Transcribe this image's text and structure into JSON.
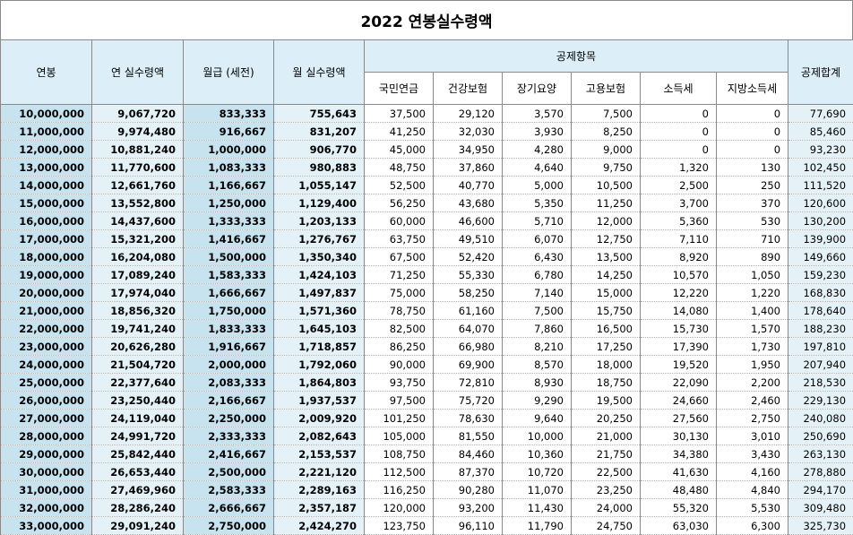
{
  "title": "2022 연봉실수령액",
  "headers": {
    "salary": "연봉",
    "annual_net": "연 실수령액",
    "monthly_gross": "월급 (세전)",
    "monthly_net": "월 실수령액",
    "deductions_group": "공제항목",
    "national_pension": "국민연금",
    "health_insurance": "건강보험",
    "long_term_care": "장기요양",
    "employment_insurance": "고용보험",
    "income_tax": "소득세",
    "local_income_tax": "지방소득세",
    "total_deductions": "공제합계"
  },
  "rows": [
    [
      "10,000,000",
      "9,067,720",
      "833,333",
      "755,643",
      "37,500",
      "29,120",
      "3,570",
      "7,500",
      "0",
      "0",
      "77,690"
    ],
    [
      "11,000,000",
      "9,974,480",
      "916,667",
      "831,207",
      "41,250",
      "32,030",
      "3,930",
      "8,250",
      "0",
      "0",
      "85,460"
    ],
    [
      "12,000,000",
      "10,881,240",
      "1,000,000",
      "906,770",
      "45,000",
      "34,950",
      "4,280",
      "9,000",
      "0",
      "0",
      "93,230"
    ],
    [
      "13,000,000",
      "11,770,600",
      "1,083,333",
      "980,883",
      "48,750",
      "37,860",
      "4,640",
      "9,750",
      "1,320",
      "130",
      "102,450"
    ],
    [
      "14,000,000",
      "12,661,760",
      "1,166,667",
      "1,055,147",
      "52,500",
      "40,770",
      "5,000",
      "10,500",
      "2,500",
      "250",
      "111,520"
    ],
    [
      "15,000,000",
      "13,552,800",
      "1,250,000",
      "1,129,400",
      "56,250",
      "43,680",
      "5,350",
      "11,250",
      "3,700",
      "370",
      "120,600"
    ],
    [
      "16,000,000",
      "14,437,600",
      "1,333,333",
      "1,203,133",
      "60,000",
      "46,600",
      "5,710",
      "12,000",
      "5,360",
      "530",
      "130,200"
    ],
    [
      "17,000,000",
      "15,321,200",
      "1,416,667",
      "1,276,767",
      "63,750",
      "49,510",
      "6,070",
      "12,750",
      "7,110",
      "710",
      "139,900"
    ],
    [
      "18,000,000",
      "16,204,080",
      "1,500,000",
      "1,350,340",
      "67,500",
      "52,420",
      "6,430",
      "13,500",
      "8,920",
      "890",
      "149,660"
    ],
    [
      "19,000,000",
      "17,089,240",
      "1,583,333",
      "1,424,103",
      "71,250",
      "55,330",
      "6,780",
      "14,250",
      "10,570",
      "1,050",
      "159,230"
    ],
    [
      "20,000,000",
      "17,974,040",
      "1,666,667",
      "1,497,837",
      "75,000",
      "58,250",
      "7,140",
      "15,000",
      "12,220",
      "1,220",
      "168,830"
    ],
    [
      "21,000,000",
      "18,856,320",
      "1,750,000",
      "1,571,360",
      "78,750",
      "61,160",
      "7,500",
      "15,750",
      "14,080",
      "1,400",
      "178,640"
    ],
    [
      "22,000,000",
      "19,741,240",
      "1,833,333",
      "1,645,103",
      "82,500",
      "64,070",
      "7,860",
      "16,500",
      "15,730",
      "1,570",
      "188,230"
    ],
    [
      "23,000,000",
      "20,626,280",
      "1,916,667",
      "1,718,857",
      "86,250",
      "66,980",
      "8,210",
      "17,250",
      "17,390",
      "1,730",
      "197,810"
    ],
    [
      "24,000,000",
      "21,504,720",
      "2,000,000",
      "1,792,060",
      "90,000",
      "69,900",
      "8,570",
      "18,000",
      "19,520",
      "1,950",
      "207,940"
    ],
    [
      "25,000,000",
      "22,377,640",
      "2,083,333",
      "1,864,803",
      "93,750",
      "72,810",
      "8,930",
      "18,750",
      "22,090",
      "2,200",
      "218,530"
    ],
    [
      "26,000,000",
      "23,250,440",
      "2,166,667",
      "1,937,537",
      "97,500",
      "75,720",
      "9,290",
      "19,500",
      "24,660",
      "2,460",
      "229,130"
    ],
    [
      "27,000,000",
      "24,119,040",
      "2,250,000",
      "2,009,920",
      "101,250",
      "78,630",
      "9,640",
      "20,250",
      "27,560",
      "2,750",
      "240,080"
    ],
    [
      "28,000,000",
      "24,991,720",
      "2,333,333",
      "2,082,643",
      "105,000",
      "81,550",
      "10,000",
      "21,000",
      "30,130",
      "3,010",
      "250,690"
    ],
    [
      "29,000,000",
      "25,842,440",
      "2,416,667",
      "2,153,537",
      "108,750",
      "84,460",
      "10,360",
      "21,750",
      "34,380",
      "3,430",
      "263,130"
    ],
    [
      "30,000,000",
      "26,653,440",
      "2,500,000",
      "2,221,120",
      "112,500",
      "87,370",
      "10,720",
      "22,500",
      "41,630",
      "4,160",
      "278,880"
    ],
    [
      "31,000,000",
      "27,469,960",
      "2,583,333",
      "2,289,163",
      "116,250",
      "90,280",
      "11,070",
      "23,250",
      "48,480",
      "4,840",
      "294,170"
    ],
    [
      "32,000,000",
      "28,286,240",
      "2,666,667",
      "2,357,187",
      "120,000",
      "93,200",
      "11,430",
      "24,000",
      "55,320",
      "5,530",
      "309,480"
    ],
    [
      "33,000,000",
      "29,091,240",
      "2,750,000",
      "2,424,270",
      "123,750",
      "96,110",
      "11,790",
      "24,750",
      "63,030",
      "6,300",
      "325,730"
    ]
  ]
}
